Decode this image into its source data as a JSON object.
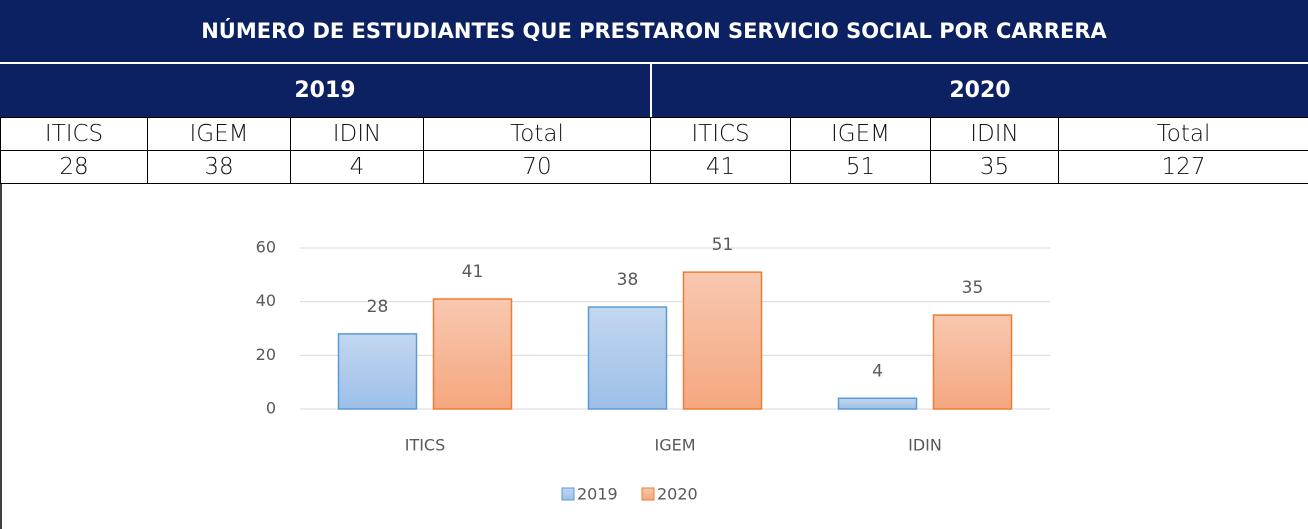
{
  "table": {
    "title": "NÚMERO DE ESTUDIANTES QUE PRESTARON SERVICIO SOCIAL POR CARRERA",
    "years": [
      "2019",
      "2020"
    ],
    "columns": [
      [
        "ITICS",
        "IGEM",
        "IDIN",
        "Total"
      ],
      [
        "ITICS",
        "IGEM",
        "IDIN",
        "Total"
      ]
    ],
    "values": [
      [
        28,
        38,
        4,
        70
      ],
      [
        41,
        51,
        35,
        127
      ]
    ]
  },
  "chart_data": {
    "type": "bar",
    "categories": [
      "ITICS",
      "IGEM",
      "IDIN"
    ],
    "series": [
      {
        "name": "2019",
        "color": "#5b9bd5",
        "values": [
          28,
          38,
          4
        ]
      },
      {
        "name": "2020",
        "color": "#ed7d31",
        "values": [
          41,
          51,
          35
        ]
      }
    ],
    "ylim": [
      0,
      60
    ],
    "yticks": [
      0,
      20,
      40,
      60
    ],
    "grid": true,
    "legend": "bottom"
  }
}
